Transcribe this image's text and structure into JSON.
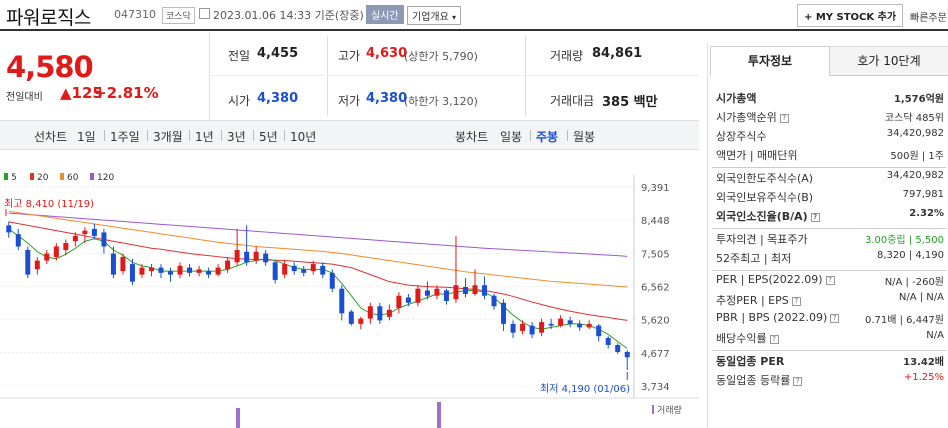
{
  "header": {
    "title": "파워로직스",
    "code": "047310",
    "market_tag": "코스닥",
    "date": "2023.01.06  14:33  기준(장중)",
    "live_btn": "실시간",
    "company_btn": "기업개요",
    "mystock_btn": "+ MY STOCK 추가",
    "quick_btn": "빠른주문"
  },
  "quote": {
    "price": "4,580",
    "change_label": "전일대비",
    "change": "▲125",
    "change_pct": "+2.81%",
    "prev_label": "전일",
    "prev": "4,455",
    "high_label": "고가",
    "high": "4,630",
    "upper_limit": "(상한가 5,790)",
    "volume_label": "거래량",
    "volume": "84,861",
    "open_label": "시가",
    "open": "4,380",
    "low_label": "저가",
    "low": "4,380",
    "lower_limit": "(하한가 3,120)",
    "amount_label": "거래대금",
    "amount": "385",
    "amount_unit": "백만"
  },
  "toolbar": {
    "line_label": "선차트",
    "line_periods": [
      "1일",
      "1주일",
      "3개월",
      "1년",
      "3년",
      "5년",
      "10년"
    ],
    "candle_label": "봉차트",
    "candle_periods": [
      "일봉",
      "주봉",
      "월봉"
    ],
    "candle_active": "주봉"
  },
  "chart_data": {
    "type": "candlestick",
    "legend": [
      {
        "name": "5",
        "color": "#2ca02c"
      },
      {
        "name": "20",
        "color": "#e03030"
      },
      {
        "name": "60",
        "color": "#f08c28"
      },
      {
        "name": "120",
        "color": "#9b59d0"
      }
    ],
    "y_ticks": [
      "9,391",
      "8,448",
      "7,505",
      "6,562",
      "5,620",
      "4,677",
      "3,734"
    ],
    "ylim": [
      3734,
      9391
    ],
    "max_annotation": "최고 8,410 (11/19)",
    "min_annotation": "최저 4,190 (01/06)",
    "volume_label": "거래량",
    "candles": [
      [
        8300,
        8100,
        8410,
        7950
      ],
      [
        8050,
        7700,
        8200,
        7600
      ],
      [
        7600,
        6900,
        7700,
        6800
      ],
      [
        7050,
        7300,
        7400,
        6900
      ],
      [
        7300,
        7500,
        7600,
        7200
      ],
      [
        7400,
        7700,
        7800,
        7300
      ],
      [
        7600,
        7800,
        7900,
        7450
      ],
      [
        7850,
        8000,
        8100,
        7700
      ],
      [
        8050,
        8150,
        8250,
        7800
      ],
      [
        8200,
        8000,
        8350,
        7900
      ],
      [
        8100,
        7700,
        8200,
        7500
      ],
      [
        7500,
        6900,
        7700,
        6800
      ],
      [
        7000,
        7400,
        7500,
        6900
      ],
      [
        7200,
        6700,
        7350,
        6600
      ],
      [
        6900,
        7100,
        7200,
        6800
      ],
      [
        7000,
        7100,
        7200,
        6850
      ],
      [
        7100,
        6950,
        7200,
        6800
      ],
      [
        7000,
        6900,
        7100,
        6700
      ],
      [
        6900,
        7150,
        7250,
        6800
      ],
      [
        7100,
        6950,
        7200,
        6850
      ],
      [
        6950,
        7050,
        7150,
        6850
      ],
      [
        7000,
        6900,
        7100,
        6800
      ],
      [
        6900,
        7100,
        7200,
        6850
      ],
      [
        7050,
        7300,
        7400,
        6950
      ],
      [
        7250,
        7600,
        8200,
        7150
      ],
      [
        7550,
        7250,
        8300,
        7150
      ],
      [
        7300,
        7550,
        7700,
        7200
      ],
      [
        7500,
        7250,
        7600,
        7150
      ],
      [
        7250,
        6750,
        7300,
        6650
      ],
      [
        6900,
        7200,
        7300,
        6800
      ],
      [
        7150,
        7000,
        7250,
        6900
      ],
      [
        7050,
        6950,
        7150,
        6850
      ],
      [
        7000,
        7200,
        7300,
        6900
      ],
      [
        7150,
        6900,
        7250,
        6800
      ],
      [
        6950,
        6500,
        7050,
        6400
      ],
      [
        6500,
        5800,
        6600,
        5600
      ],
      [
        5850,
        5500,
        5900,
        5450
      ],
      [
        5500,
        5650,
        5700,
        5350
      ],
      [
        5650,
        6000,
        6100,
        5500
      ],
      [
        6000,
        5600,
        6100,
        5500
      ],
      [
        5700,
        5900,
        6050,
        5600
      ],
      [
        5950,
        6300,
        6400,
        5800
      ],
      [
        6250,
        6100,
        6350,
        6000
      ],
      [
        6100,
        6500,
        6600,
        6000
      ],
      [
        6450,
        6300,
        6700,
        6200
      ],
      [
        6300,
        6500,
        6600,
        6200
      ],
      [
        6450,
        6150,
        6500,
        6050
      ],
      [
        6200,
        6600,
        8000,
        6100
      ],
      [
        6550,
        6350,
        6800,
        6250
      ],
      [
        6350,
        6600,
        7050,
        6300
      ],
      [
        6600,
        6300,
        6850,
        6200
      ],
      [
        6300,
        6000,
        6350,
        5900
      ],
      [
        6100,
        5500,
        6200,
        5300
      ],
      [
        5500,
        5250,
        5600,
        5100
      ],
      [
        5300,
        5500,
        5600,
        5200
      ],
      [
        5450,
        5200,
        5550,
        5100
      ],
      [
        5250,
        5550,
        5650,
        5150
      ],
      [
        5500,
        5450,
        5650,
        5350
      ],
      [
        5450,
        5650,
        5750,
        5400
      ],
      [
        5600,
        5500,
        5700,
        5400
      ],
      [
        5500,
        5400,
        5600,
        5300
      ],
      [
        5400,
        5500,
        5600,
        5350
      ],
      [
        5450,
        5150,
        5500,
        5000
      ],
      [
        5100,
        4900,
        5150,
        4800
      ],
      [
        4900,
        4700,
        4950,
        4650
      ],
      [
        4700,
        4550,
        4750,
        4190
      ]
    ],
    "ma5": [
      8200,
      8000,
      7800,
      7550,
      7400,
      7350,
      7480,
      7650,
      7850,
      7920,
      7850,
      7600,
      7450,
      7250,
      7150,
      7100,
      7000,
      7000,
      7000,
      7000,
      7000,
      7000,
      7000,
      7050,
      7150,
      7250,
      7300,
      7350,
      7300,
      7200,
      7100,
      7050,
      7050,
      7050,
      6950,
      6650,
      6300,
      5950,
      5800,
      5750,
      5800,
      5950,
      6050,
      6150,
      6250,
      6350,
      6350,
      6400,
      6450,
      6450,
      6400,
      6250,
      6000,
      5750,
      5550,
      5400,
      5350,
      5400,
      5450,
      5500,
      5500,
      5450,
      5350,
      5200,
      5000,
      4800
    ],
    "ma20": [
      8400,
      8350,
      8300,
      8250,
      8200,
      8150,
      8100,
      8050,
      8000,
      7950,
      7900,
      7850,
      7800,
      7750,
      7700,
      7650,
      7620,
      7580,
      7540,
      7500,
      7470,
      7440,
      7410,
      7380,
      7350,
      7340,
      7330,
      7320,
      7310,
      7300,
      7280,
      7260,
      7240,
      7220,
      7200,
      7150,
      7100,
      7000,
      6900,
      6800,
      6700,
      6650,
      6600,
      6580,
      6560,
      6550,
      6540,
      6520,
      6500,
      6480,
      6450,
      6400,
      6350,
      6280,
      6200,
      6120,
      6050,
      5980,
      5920,
      5860,
      5810,
      5760,
      5720,
      5680,
      5640,
      5600
    ],
    "ma60": [
      8700,
      8660,
      8620,
      8580,
      8540,
      8500,
      8460,
      8420,
      8380,
      8340,
      8300,
      8260,
      8220,
      8180,
      8140,
      8100,
      8060,
      8020,
      7980,
      7940,
      7900,
      7860,
      7820,
      7790,
      7760,
      7730,
      7700,
      7680,
      7660,
      7640,
      7620,
      7600,
      7580,
      7560,
      7530,
      7500,
      7460,
      7420,
      7380,
      7340,
      7300,
      7260,
      7220,
      7180,
      7140,
      7100,
      7060,
      7020,
      6980,
      6950,
      6920,
      6890,
      6860,
      6830,
      6800,
      6770,
      6740,
      6710,
      6690,
      6670,
      6650,
      6630,
      6610,
      6590,
      6570,
      6550
    ],
    "ma120": [
      8650,
      8630,
      8610,
      8590,
      8570,
      8550,
      8530,
      8510,
      8490,
      8470,
      8450,
      8430,
      8410,
      8390,
      8370,
      8350,
      8330,
      8310,
      8290,
      8270,
      8250,
      8230,
      8210,
      8190,
      8170,
      8150,
      8130,
      8110,
      8090,
      8070,
      8050,
      8030,
      8010,
      7990,
      7970,
      7950,
      7930,
      7910,
      7890,
      7870,
      7850,
      7830,
      7810,
      7790,
      7770,
      7750,
      7730,
      7710,
      7690,
      7670,
      7650,
      7635,
      7620,
      7605,
      7590,
      7575,
      7560,
      7545,
      7530,
      7515,
      7500,
      7485,
      7470,
      7455,
      7440,
      7420
    ]
  },
  "side": {
    "tab_active": "투자정보",
    "tab_other": "호가 10단계",
    "rows": [
      {
        "k": "시가총액",
        "v": "1,576억원",
        "bold": true
      },
      {
        "k": "시가총액순위",
        "v": "코스닥 485위",
        "icon": true
      },
      {
        "k": "상장주식수",
        "v": "34,420,982"
      },
      {
        "k": "액면가 | 매매단위",
        "v": "500원 | 1주"
      },
      {
        "k": "외국인한도주식수(A)",
        "v": "34,420,982",
        "sep_before": true
      },
      {
        "k": "외국인보유주식수(B)",
        "v": "797,981"
      },
      {
        "k": "외국인소진율(B/A)",
        "v": "2.32%",
        "bold": true,
        "icon": true
      },
      {
        "k": "투자의견 | 목표주가",
        "v": "3.00중립 | 5,500",
        "sep_before": true,
        "green": true
      },
      {
        "k": "52주최고 | 최저",
        "v": "8,320 | 4,190"
      },
      {
        "k": "PER | EPS(2022.09)",
        "v": "N/A | -260원",
        "sep_before": true,
        "icon": true
      },
      {
        "k": "추정PER | EPS",
        "v": "N/A | N/A",
        "icon": true
      },
      {
        "k": "PBR | BPS (2022.09)",
        "v": "0.71배 | 6,447원",
        "icon": true
      },
      {
        "k": "배당수익률",
        "v": "N/A",
        "icon": true
      },
      {
        "k": "동일업종 PER",
        "v": "13.42배",
        "sep_before": true,
        "bold": true
      },
      {
        "k": "동일업종 등락률",
        "v": "+1.25%",
        "icon": true,
        "red": true
      }
    ]
  }
}
